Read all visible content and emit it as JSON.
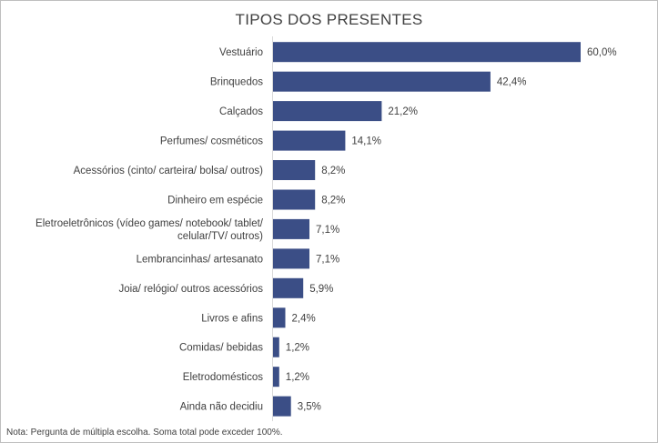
{
  "chart_data": {
    "type": "bar",
    "orientation": "horizontal",
    "title": "TIPOS DOS PRESENTES",
    "xlabel": "",
    "ylabel": "",
    "xlim": [
      0,
      60
    ],
    "grid": false,
    "bar_color": "#3b4e86",
    "categories": [
      "Vestuário",
      "Brinquedos",
      "Calçados",
      "Perfumes/ cosméticos",
      "Acessórios (cinto/ carteira/ bolsa/ outros)",
      "Dinheiro em espécie",
      "Eletroeletrônicos (vídeo games/ notebook/ tablet/ celular/TV/ outros)",
      "Lembrancinhas/ artesanato",
      "Joia/ relógio/ outros acessórios",
      "Livros e afins",
      "Comidas/ bebidas",
      "Eletrodomésticos",
      "Ainda não decidiu"
    ],
    "category_lines": [
      [
        "Vestuário"
      ],
      [
        "Brinquedos"
      ],
      [
        "Calçados"
      ],
      [
        "Perfumes/ cosméticos"
      ],
      [
        "Acessórios (cinto/ carteira/ bolsa/ outros)"
      ],
      [
        "Dinheiro em espécie"
      ],
      [
        "Eletroeletrônicos (vídeo games/ notebook/ tablet/",
        "celular/TV/ outros)"
      ],
      [
        "Lembrancinhas/ artesanato"
      ],
      [
        "Joia/ relógio/ outros acessórios"
      ],
      [
        "Livros e afins"
      ],
      [
        "Comidas/ bebidas"
      ],
      [
        "Eletrodomésticos"
      ],
      [
        "Ainda não decidiu"
      ]
    ],
    "values": [
      60.0,
      42.4,
      21.2,
      14.1,
      8.2,
      8.2,
      7.1,
      7.1,
      5.9,
      2.4,
      1.2,
      1.2,
      3.5
    ],
    "value_labels": [
      "60,0%",
      "42,4%",
      "21,2%",
      "14,1%",
      "8,2%",
      "8,2%",
      "7,1%",
      "7,1%",
      "5,9%",
      "2,4%",
      "1,2%",
      "1,2%",
      "3,5%"
    ],
    "note": "Nota: Pergunta de múltipla escolha. Soma total pode exceder 100%."
  }
}
